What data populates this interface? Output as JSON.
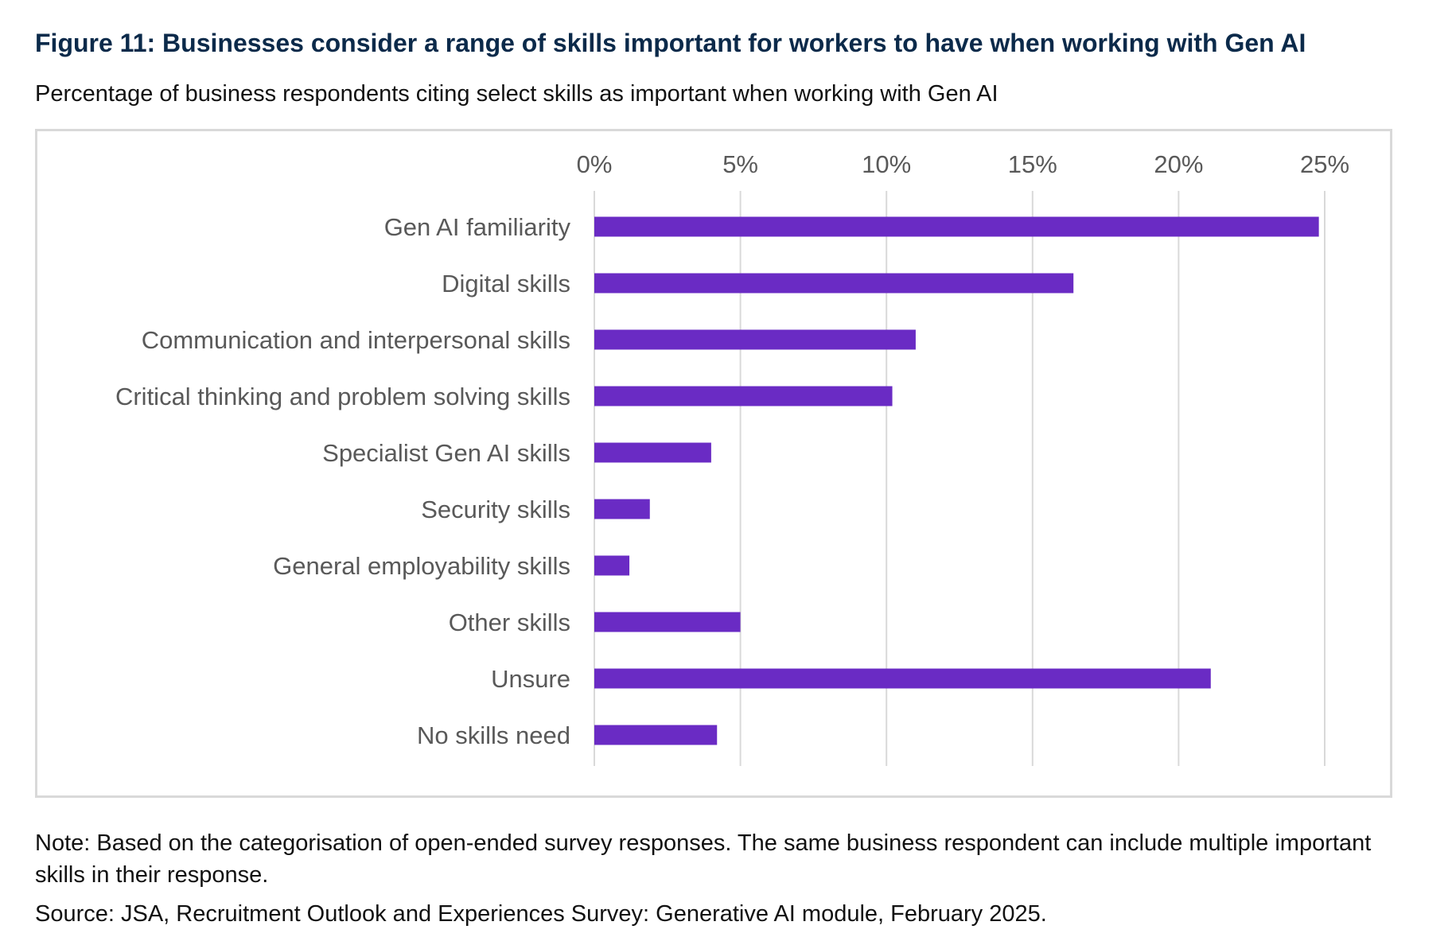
{
  "header": {
    "title": "Figure 11: Businesses consider a range of skills important for workers to have when working with Gen AI",
    "subtitle": "Percentage of business respondents citing select skills as important when working with Gen AI"
  },
  "footer": {
    "note": "Note: Based on the categorisation of open-ended survey responses. The same business respondent can include multiple important skills in their response.",
    "source": "Source: JSA, Recruitment Outlook and Experiences Survey: Generative AI module, February 2025."
  },
  "colors": {
    "bar": "#6a2bc4",
    "gridline": "#d9d9d9",
    "title": "#0b2a4a"
  },
  "chart_data": {
    "type": "bar",
    "orientation": "horizontal",
    "title": "Figure 11: Businesses consider a range of skills important for workers to have when working with Gen AI",
    "subtitle": "Percentage of business respondents citing select skills as important when working with Gen AI",
    "xlabel": "",
    "ylabel": "",
    "xlim": [
      0,
      25
    ],
    "x_ticks": [
      0,
      5,
      10,
      15,
      20,
      25
    ],
    "x_tick_labels": [
      "0%",
      "5%",
      "10%",
      "15%",
      "20%",
      "25%"
    ],
    "x_axis_position": "top",
    "grid": true,
    "legend": "none",
    "categories": [
      "Gen AI familiarity",
      "Digital skills",
      "Communication and interpersonal skills",
      "Critical thinking and problem solving skills",
      "Specialist Gen AI skills",
      "Security skills",
      "General employability skills",
      "Other skills",
      "Unsure",
      "No skills need"
    ],
    "values": [
      24.8,
      16.4,
      11.0,
      10.2,
      4.0,
      1.9,
      1.2,
      5.0,
      21.1,
      4.2
    ],
    "unit": "%"
  }
}
